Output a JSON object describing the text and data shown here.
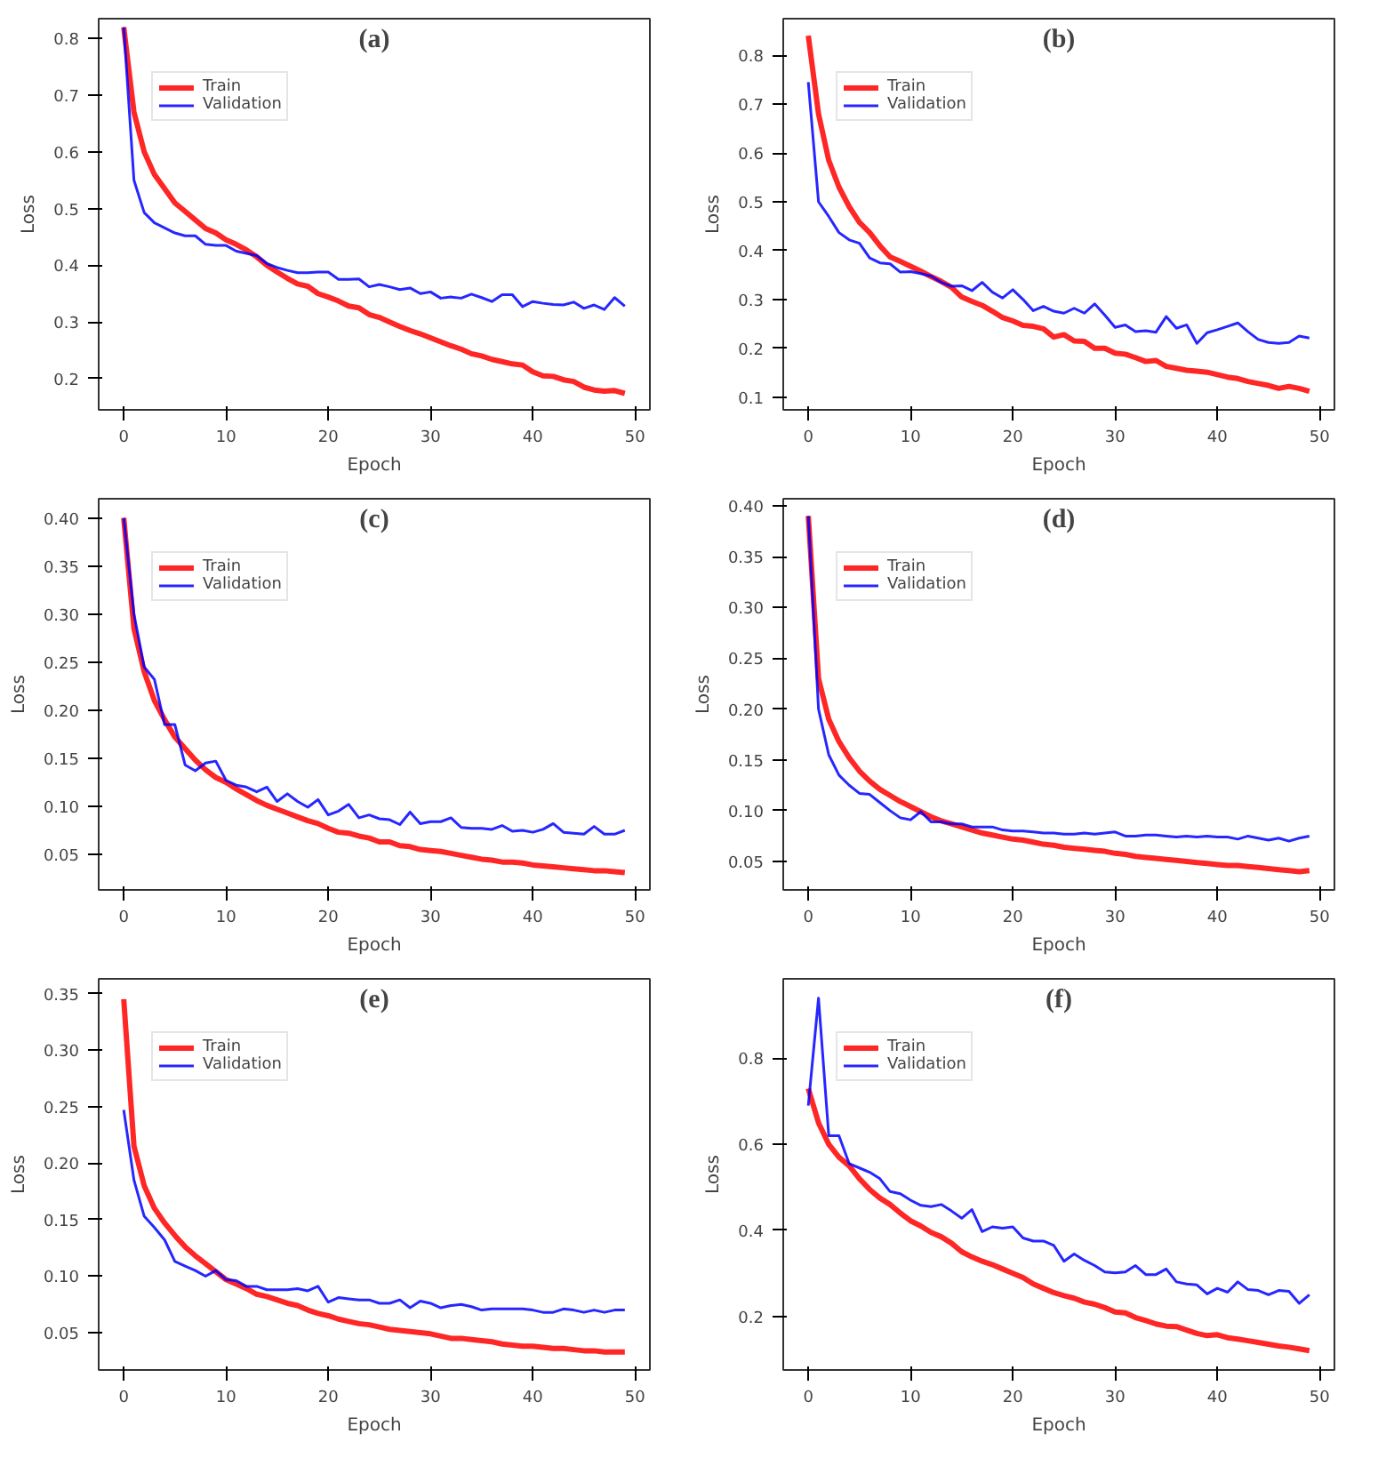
{
  "chart_data": [
    {
      "type": "line",
      "title": "(a)",
      "xlabel": "Epoch",
      "ylabel": "Loss",
      "x": [
        0,
        1,
        2,
        3,
        4,
        5,
        6,
        7,
        8,
        9,
        10,
        11,
        12,
        13,
        14,
        15,
        16,
        17,
        18,
        19,
        20,
        21,
        22,
        23,
        24,
        25,
        26,
        27,
        28,
        29,
        30,
        31,
        32,
        33,
        34,
        35,
        36,
        37,
        38,
        39,
        40,
        41,
        42,
        43,
        44,
        45,
        46,
        47,
        48,
        49
      ],
      "xlim": [
        -2.45,
        51.45
      ],
      "xticks": [
        0,
        10,
        20,
        30,
        40,
        50
      ],
      "ylim": [
        0.145,
        0.835
      ],
      "yticks": [
        0.2,
        0.3,
        0.4,
        0.5,
        0.6,
        0.7,
        0.8
      ],
      "legend": "top left",
      "grid": false,
      "series": [
        {
          "name": "Train",
          "color": "#ff0000",
          "values": [
            0.82,
            0.67,
            0.6,
            0.56,
            0.535,
            0.51,
            0.495,
            0.48,
            0.465,
            0.457,
            0.445,
            0.437,
            0.427,
            0.415,
            0.4,
            0.388,
            0.377,
            0.367,
            0.363,
            0.35,
            0.344,
            0.337,
            0.328,
            0.325,
            0.313,
            0.308,
            0.3,
            0.292,
            0.285,
            0.279,
            0.272,
            0.265,
            0.258,
            0.252,
            0.244,
            0.24,
            0.234,
            0.23,
            0.226,
            0.224,
            0.212,
            0.205,
            0.204,
            0.198,
            0.195,
            0.185,
            0.18,
            0.178,
            0.179,
            0.174
          ]
        },
        {
          "name": "Validation",
          "color": "#0000ff",
          "values": [
            0.82,
            0.55,
            0.493,
            0.475,
            0.466,
            0.457,
            0.452,
            0.452,
            0.437,
            0.435,
            0.435,
            0.425,
            0.421,
            0.417,
            0.403,
            0.396,
            0.391,
            0.387,
            0.387,
            0.388,
            0.388,
            0.375,
            0.375,
            0.376,
            0.362,
            0.366,
            0.362,
            0.357,
            0.36,
            0.35,
            0.353,
            0.342,
            0.344,
            0.342,
            0.349,
            0.343,
            0.336,
            0.348,
            0.348,
            0.327,
            0.336,
            0.333,
            0.331,
            0.33,
            0.335,
            0.324,
            0.33,
            0.322,
            0.343,
            0.328
          ]
        }
      ]
    },
    {
      "type": "line",
      "title": "(b)",
      "xlabel": "Epoch",
      "ylabel": "Loss",
      "x": [
        0,
        1,
        2,
        3,
        4,
        5,
        6,
        7,
        8,
        9,
        10,
        11,
        12,
        13,
        14,
        15,
        16,
        17,
        18,
        19,
        20,
        21,
        22,
        23,
        24,
        25,
        26,
        27,
        28,
        29,
        30,
        31,
        32,
        33,
        34,
        35,
        36,
        37,
        38,
        39,
        40,
        41,
        42,
        43,
        44,
        45,
        46,
        47,
        48,
        49
      ],
      "xlim": [
        -2.45,
        51.45
      ],
      "xticks": [
        0,
        10,
        20,
        30,
        40,
        50
      ],
      "ylim": [
        0.074,
        0.875
      ],
      "yticks": [
        0.1,
        0.2,
        0.3,
        0.4,
        0.5,
        0.6,
        0.7,
        0.8
      ],
      "legend": "top left",
      "grid": false,
      "series": [
        {
          "name": "Train",
          "color": "#ff0000",
          "values": [
            0.84,
            0.68,
            0.585,
            0.53,
            0.49,
            0.458,
            0.437,
            0.41,
            0.387,
            0.378,
            0.368,
            0.358,
            0.347,
            0.337,
            0.325,
            0.305,
            0.296,
            0.288,
            0.276,
            0.263,
            0.256,
            0.247,
            0.245,
            0.24,
            0.223,
            0.228,
            0.215,
            0.214,
            0.2,
            0.2,
            0.19,
            0.188,
            0.181,
            0.173,
            0.175,
            0.163,
            0.159,
            0.155,
            0.153,
            0.151,
            0.146,
            0.141,
            0.138,
            0.132,
            0.128,
            0.124,
            0.118,
            0.122,
            0.118,
            0.112
          ]
        },
        {
          "name": "Validation",
          "color": "#0000ff",
          "values": [
            0.745,
            0.5,
            0.47,
            0.437,
            0.422,
            0.415,
            0.385,
            0.375,
            0.373,
            0.356,
            0.357,
            0.353,
            0.348,
            0.335,
            0.327,
            0.328,
            0.318,
            0.335,
            0.315,
            0.303,
            0.32,
            0.3,
            0.277,
            0.286,
            0.276,
            0.272,
            0.282,
            0.272,
            0.291,
            0.268,
            0.243,
            0.248,
            0.234,
            0.236,
            0.233,
            0.265,
            0.241,
            0.248,
            0.21,
            0.232,
            0.238,
            0.245,
            0.252,
            0.234,
            0.218,
            0.212,
            0.21,
            0.212,
            0.225,
            0.221
          ]
        }
      ]
    },
    {
      "type": "line",
      "title": "(c)",
      "xlabel": "Epoch",
      "ylabel": "Loss",
      "x": [
        0,
        1,
        2,
        3,
        4,
        5,
        6,
        7,
        8,
        9,
        10,
        11,
        12,
        13,
        14,
        15,
        16,
        17,
        18,
        19,
        20,
        21,
        22,
        23,
        24,
        25,
        26,
        27,
        28,
        29,
        30,
        31,
        32,
        33,
        34,
        35,
        36,
        37,
        38,
        39,
        40,
        41,
        42,
        43,
        44,
        45,
        46,
        47,
        48,
        49
      ],
      "xlim": [
        -2.45,
        51.45
      ],
      "xticks": [
        0,
        10,
        20,
        30,
        40,
        50
      ],
      "ylim": [
        0.013,
        0.42
      ],
      "yticks": [
        0.05,
        {
          "value": 0.1,
          "label": "0.10"
        },
        0.15,
        {
          "value": 0.2,
          "label": "0.20"
        },
        0.25,
        {
          "value": 0.3,
          "label": "0.30"
        },
        0.35,
        {
          "value": 0.4,
          "label": "0.40"
        }
      ],
      "legend": "top left",
      "grid": false,
      "series": [
        {
          "name": "Train",
          "color": "#ff0000",
          "values": [
            0.4,
            0.285,
            0.24,
            0.21,
            0.19,
            0.172,
            0.16,
            0.148,
            0.138,
            0.13,
            0.125,
            0.118,
            0.112,
            0.106,
            0.101,
            0.097,
            0.093,
            0.089,
            0.085,
            0.082,
            0.077,
            0.073,
            0.072,
            0.069,
            0.067,
            0.063,
            0.063,
            0.059,
            0.058,
            0.055,
            0.054,
            0.053,
            0.051,
            0.049,
            0.047,
            0.045,
            0.044,
            0.042,
            0.042,
            0.041,
            0.039,
            0.038,
            0.037,
            0.036,
            0.035,
            0.034,
            0.033,
            0.033,
            0.032,
            0.031
          ]
        },
        {
          "name": "Validation",
          "color": "#0000ff",
          "values": [
            0.4,
            0.3,
            0.245,
            0.232,
            0.185,
            0.185,
            0.143,
            0.137,
            0.145,
            0.147,
            0.127,
            0.122,
            0.12,
            0.115,
            0.12,
            0.105,
            0.113,
            0.105,
            0.099,
            0.107,
            0.091,
            0.095,
            0.102,
            0.088,
            0.091,
            0.087,
            0.086,
            0.081,
            0.094,
            0.082,
            0.084,
            0.084,
            0.088,
            0.078,
            0.077,
            0.077,
            0.076,
            0.08,
            0.074,
            0.075,
            0.073,
            0.076,
            0.082,
            0.073,
            0.072,
            0.071,
            0.079,
            0.071,
            0.071,
            0.075
          ]
        }
      ]
    },
    {
      "type": "line",
      "title": "(d)",
      "xlabel": "Epoch",
      "ylabel": "Loss",
      "x": [
        0,
        1,
        2,
        3,
        4,
        5,
        6,
        7,
        8,
        9,
        10,
        11,
        12,
        13,
        14,
        15,
        16,
        17,
        18,
        19,
        20,
        21,
        22,
        23,
        24,
        25,
        26,
        27,
        28,
        29,
        30,
        31,
        32,
        33,
        34,
        35,
        36,
        37,
        38,
        39,
        40,
        41,
        42,
        43,
        44,
        45,
        46,
        47,
        48,
        49
      ],
      "xlim": [
        -2.45,
        51.45
      ],
      "xticks": [
        0,
        10,
        20,
        30,
        40,
        50
      ],
      "ylim": [
        0.022,
        0.407
      ],
      "yticks": [
        0.05,
        {
          "value": 0.1,
          "label": "0.10"
        },
        0.15,
        {
          "value": 0.2,
          "label": "0.20"
        },
        0.25,
        {
          "value": 0.3,
          "label": "0.30"
        },
        0.35,
        {
          "value": 0.4,
          "label": "0.40"
        }
      ],
      "legend": "top left",
      "grid": false,
      "series": [
        {
          "name": "Train",
          "color": "#ff0000",
          "values": [
            0.39,
            0.23,
            0.19,
            0.168,
            0.152,
            0.139,
            0.129,
            0.121,
            0.115,
            0.109,
            0.104,
            0.099,
            0.094,
            0.09,
            0.087,
            0.084,
            0.081,
            0.078,
            0.076,
            0.074,
            0.072,
            0.071,
            0.069,
            0.067,
            0.066,
            0.064,
            0.063,
            0.062,
            0.061,
            0.06,
            0.058,
            0.057,
            0.055,
            0.054,
            0.053,
            0.052,
            0.051,
            0.05,
            0.049,
            0.048,
            0.047,
            0.046,
            0.046,
            0.045,
            0.044,
            0.043,
            0.042,
            0.041,
            0.04,
            0.041
          ]
        },
        {
          "name": "Validation",
          "color": "#0000ff",
          "values": [
            0.39,
            0.2,
            0.155,
            0.135,
            0.125,
            0.117,
            0.116,
            0.108,
            0.1,
            0.093,
            0.091,
            0.099,
            0.089,
            0.089,
            0.087,
            0.087,
            0.084,
            0.084,
            0.084,
            0.081,
            0.08,
            0.08,
            0.079,
            0.078,
            0.078,
            0.077,
            0.077,
            0.078,
            0.077,
            0.078,
            0.079,
            0.075,
            0.075,
            0.076,
            0.076,
            0.075,
            0.074,
            0.075,
            0.074,
            0.075,
            0.074,
            0.074,
            0.072,
            0.075,
            0.073,
            0.071,
            0.073,
            0.07,
            0.073,
            0.075
          ]
        }
      ]
    },
    {
      "type": "line",
      "title": "(e)",
      "xlabel": "Epoch",
      "ylabel": "Loss",
      "x": [
        0,
        1,
        2,
        3,
        4,
        5,
        6,
        7,
        8,
        9,
        10,
        11,
        12,
        13,
        14,
        15,
        16,
        17,
        18,
        19,
        20,
        21,
        22,
        23,
        24,
        25,
        26,
        27,
        28,
        29,
        30,
        31,
        32,
        33,
        34,
        35,
        36,
        37,
        38,
        39,
        40,
        41,
        42,
        43,
        44,
        45,
        46,
        47,
        48,
        49
      ],
      "xlim": [
        -2.45,
        51.45
      ],
      "xticks": [
        0,
        10,
        20,
        30,
        40,
        50
      ],
      "ylim": [
        0.017,
        0.363
      ],
      "yticks": [
        0.05,
        {
          "value": 0.1,
          "label": "0.10"
        },
        0.15,
        {
          "value": 0.2,
          "label": "0.20"
        },
        0.25,
        {
          "value": 0.3,
          "label": "0.30"
        },
        0.35
      ],
      "legend": "top left",
      "grid": false,
      "series": [
        {
          "name": "Train",
          "color": "#ff0000",
          "values": [
            0.345,
            0.215,
            0.18,
            0.16,
            0.147,
            0.136,
            0.126,
            0.118,
            0.111,
            0.104,
            0.097,
            0.093,
            0.089,
            0.084,
            0.082,
            0.079,
            0.076,
            0.074,
            0.07,
            0.067,
            0.065,
            0.062,
            0.06,
            0.058,
            0.057,
            0.055,
            0.053,
            0.052,
            0.051,
            0.05,
            0.049,
            0.047,
            0.045,
            0.045,
            0.044,
            0.043,
            0.042,
            0.04,
            0.039,
            0.038,
            0.038,
            0.037,
            0.036,
            0.036,
            0.035,
            0.034,
            0.034,
            0.033,
            0.033,
            0.033
          ]
        },
        {
          "name": "Validation",
          "color": "#0000ff",
          "values": [
            0.247,
            0.185,
            0.153,
            0.143,
            0.132,
            0.113,
            0.109,
            0.105,
            0.1,
            0.105,
            0.097,
            0.096,
            0.091,
            0.091,
            0.088,
            0.088,
            0.088,
            0.089,
            0.087,
            0.091,
            0.077,
            0.081,
            0.08,
            0.079,
            0.079,
            0.076,
            0.076,
            0.079,
            0.072,
            0.078,
            0.076,
            0.072,
            0.074,
            0.075,
            0.073,
            0.07,
            0.071,
            0.071,
            0.071,
            0.071,
            0.07,
            0.068,
            0.068,
            0.071,
            0.07,
            0.068,
            0.07,
            0.068,
            0.07,
            0.07
          ]
        }
      ]
    },
    {
      "type": "line",
      "title": "(f)",
      "xlabel": "Epoch",
      "ylabel": "Loss",
      "x": [
        0,
        1,
        2,
        3,
        4,
        5,
        6,
        7,
        8,
        9,
        10,
        11,
        12,
        13,
        14,
        15,
        16,
        17,
        18,
        19,
        20,
        21,
        22,
        23,
        24,
        25,
        26,
        27,
        28,
        29,
        30,
        31,
        32,
        33,
        34,
        35,
        36,
        37,
        38,
        39,
        40,
        41,
        42,
        43,
        44,
        45,
        46,
        47,
        48,
        49
      ],
      "xlim": [
        -2.45,
        51.45
      ],
      "xticks": [
        0,
        10,
        20,
        30,
        40,
        50
      ],
      "ylim": [
        0.075,
        0.985
      ],
      "yticks": [
        0.2,
        0.4,
        0.6,
        0.8
      ],
      "legend": "top left",
      "grid": false,
      "series": [
        {
          "name": "Train",
          "color": "#ff0000",
          "values": [
            0.73,
            0.65,
            0.6,
            0.57,
            0.55,
            0.52,
            0.495,
            0.475,
            0.46,
            0.44,
            0.422,
            0.41,
            0.395,
            0.385,
            0.37,
            0.35,
            0.338,
            0.328,
            0.32,
            0.31,
            0.3,
            0.29,
            0.275,
            0.265,
            0.255,
            0.248,
            0.242,
            0.233,
            0.228,
            0.22,
            0.21,
            0.208,
            0.197,
            0.19,
            0.182,
            0.177,
            0.176,
            0.168,
            0.16,
            0.155,
            0.157,
            0.15,
            0.147,
            0.143,
            0.139,
            0.135,
            0.131,
            0.128,
            0.124,
            0.12
          ]
        },
        {
          "name": "Validation",
          "color": "#0000ff",
          "values": [
            0.69,
            0.94,
            0.62,
            0.62,
            0.555,
            0.545,
            0.535,
            0.52,
            0.49,
            0.485,
            0.47,
            0.458,
            0.455,
            0.46,
            0.445,
            0.428,
            0.448,
            0.397,
            0.408,
            0.405,
            0.408,
            0.382,
            0.375,
            0.375,
            0.365,
            0.328,
            0.345,
            0.33,
            0.318,
            0.303,
            0.301,
            0.303,
            0.318,
            0.297,
            0.297,
            0.31,
            0.28,
            0.275,
            0.273,
            0.252,
            0.265,
            0.256,
            0.28,
            0.262,
            0.26,
            0.25,
            0.26,
            0.258,
            0.23,
            0.25
          ]
        }
      ]
    }
  ]
}
